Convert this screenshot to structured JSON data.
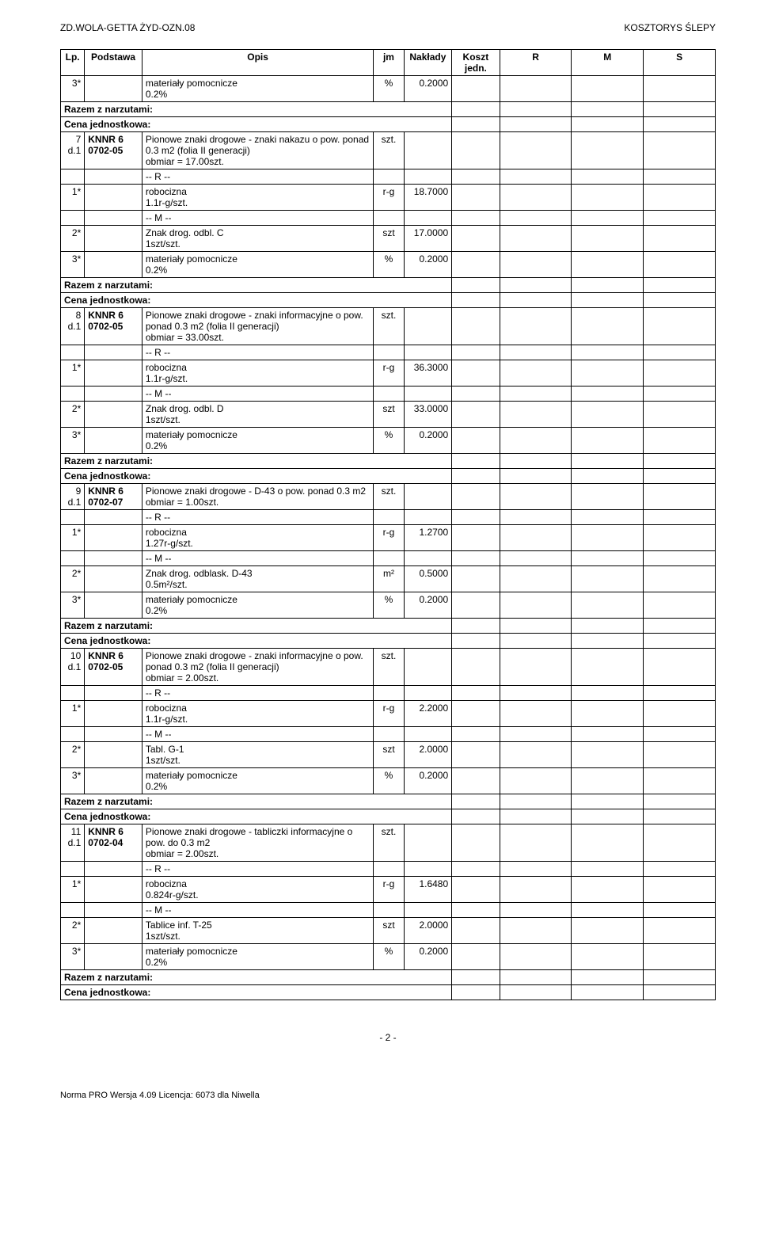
{
  "header": {
    "left": "ZD.WOLA-GETTA ŻYD-OZN.08",
    "right": "KOSZTORYS ŚLEPY"
  },
  "columns": {
    "lp": "Lp.",
    "podstawa": "Podstawa",
    "opis": "Opis",
    "jm": "jm",
    "naklady": "Nakłady",
    "koszt": "Koszt jedn.",
    "r": "R",
    "m": "M",
    "s": "S"
  },
  "first_row": {
    "lp": "3*",
    "podstawa": "",
    "opis": "materiały pomocnicze\n0.2%",
    "jm": "%",
    "naklady": "0.2000"
  },
  "razem_label": "Razem z narzutami:",
  "cena_label": "Cena jednostkowa:",
  "groups": [
    {
      "lp": "7\nd.1",
      "podstawa": "KNNR 6\n0702-05",
      "opis": "Pionowe znaki drogowe - znaki nakazu  o pow. ponad 0.3 m2 (folia II generacji)\nobmiar = 17.00szt.",
      "jm": "szt.",
      "sub": [
        {
          "lp": "",
          "opis": "-- R --",
          "jm": "",
          "naklady": ""
        },
        {
          "lp": "1*",
          "opis": "robocizna\n1.1r-g/szt.",
          "jm": "r-g",
          "naklady": "18.7000"
        },
        {
          "lp": "",
          "opis": "-- M --",
          "jm": "",
          "naklady": ""
        },
        {
          "lp": "2*",
          "opis": "Znak drog. odbl. C\n1szt/szt.",
          "jm": "szt",
          "naklady": "17.0000"
        },
        {
          "lp": "3*",
          "opis": "materiały pomocnicze\n0.2%",
          "jm": "%",
          "naklady": "0.2000"
        }
      ]
    },
    {
      "lp": "8\nd.1",
      "podstawa": "KNNR 6\n0702-05",
      "opis": "Pionowe znaki drogowe - znaki informacyjne o pow. ponad 0.3 m2 (folia II generacji)\nobmiar = 33.00szt.",
      "jm": "szt.",
      "sub": [
        {
          "lp": "",
          "opis": "-- R --",
          "jm": "",
          "naklady": ""
        },
        {
          "lp": "1*",
          "opis": "robocizna\n1.1r-g/szt.",
          "jm": "r-g",
          "naklady": "36.3000"
        },
        {
          "lp": "",
          "opis": "-- M --",
          "jm": "",
          "naklady": ""
        },
        {
          "lp": "2*",
          "opis": "Znak drog. odbl. D\n1szt/szt.",
          "jm": "szt",
          "naklady": "33.0000"
        },
        {
          "lp": "3*",
          "opis": "materiały pomocnicze\n0.2%",
          "jm": "%",
          "naklady": "0.2000"
        }
      ]
    },
    {
      "lp": "9\nd.1",
      "podstawa": "KNNR 6\n0702-07",
      "opis": "Pionowe znaki drogowe - D-43 o pow. ponad 0.3 m2\nobmiar = 1.00szt.",
      "jm": "szt.",
      "sub": [
        {
          "lp": "",
          "opis": "-- R --",
          "jm": "",
          "naklady": ""
        },
        {
          "lp": "1*",
          "opis": "robocizna\n1.27r-g/szt.",
          "jm": "r-g",
          "naklady": "1.2700"
        },
        {
          "lp": "",
          "opis": "-- M --",
          "jm": "",
          "naklady": ""
        },
        {
          "lp": "2*",
          "opis": "Znak drog. odblask. D-43\n0.5m²/szt.",
          "jm": "m²",
          "naklady": "0.5000"
        },
        {
          "lp": "3*",
          "opis": "materiały pomocnicze\n0.2%",
          "jm": "%",
          "naklady": "0.2000"
        }
      ]
    },
    {
      "lp": "10\nd.1",
      "podstawa": "KNNR 6\n0702-05",
      "opis": "Pionowe znaki drogowe - znaki informacyjne o pow. ponad 0.3 m2 (folia II generacji)\nobmiar = 2.00szt.",
      "jm": "szt.",
      "sub": [
        {
          "lp": "",
          "opis": "-- R --",
          "jm": "",
          "naklady": ""
        },
        {
          "lp": "1*",
          "opis": "robocizna\n1.1r-g/szt.",
          "jm": "r-g",
          "naklady": "2.2000"
        },
        {
          "lp": "",
          "opis": "-- M --",
          "jm": "",
          "naklady": ""
        },
        {
          "lp": "2*",
          "opis": "Tabl. G-1\n1szt/szt.",
          "jm": "szt",
          "naklady": "2.0000"
        },
        {
          "lp": "3*",
          "opis": "materiały pomocnicze\n0.2%",
          "jm": "%",
          "naklady": "0.2000"
        }
      ]
    },
    {
      "lp": "11\nd.1",
      "podstawa": "KNNR 6\n0702-04",
      "opis": "Pionowe znaki drogowe - tabliczki informacyjne  o pow. do 0.3 m2\nobmiar = 2.00szt.",
      "jm": "szt.",
      "sub": [
        {
          "lp": "",
          "opis": "-- R --",
          "jm": "",
          "naklady": ""
        },
        {
          "lp": "1*",
          "opis": "robocizna\n0.824r-g/szt.",
          "jm": "r-g",
          "naklady": "1.6480"
        },
        {
          "lp": "",
          "opis": "-- M --",
          "jm": "",
          "naklady": ""
        },
        {
          "lp": "2*",
          "opis": "Tablice inf. T-25\n1szt/szt.",
          "jm": "szt",
          "naklady": "2.0000"
        },
        {
          "lp": "3*",
          "opis": "materiały pomocnicze\n0.2%",
          "jm": "%",
          "naklady": "0.2000"
        }
      ]
    }
  ],
  "page_number": "- 2 -",
  "footer": "Norma PRO Wersja 4.09 Licencja: 6073 dla Niwella"
}
